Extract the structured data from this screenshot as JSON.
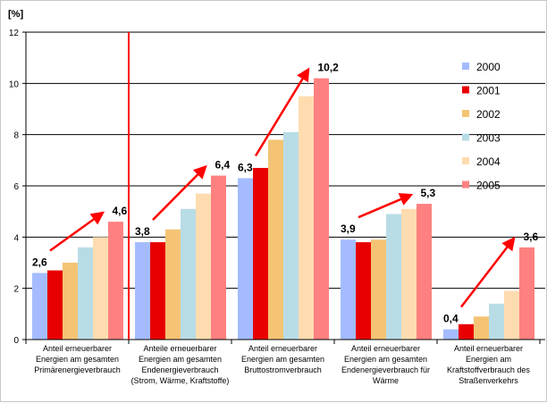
{
  "chart_data": {
    "type": "bar",
    "ylabel": "[%]",
    "ylim": [
      0,
      12
    ],
    "yticks": [
      "0",
      "2",
      "4",
      "6",
      "8",
      "10",
      "12"
    ],
    "grid": true,
    "legend_placement": "right",
    "categories": [
      "Anteil erneuerbarer Energien am gesamten Primärenergieverbrauch",
      "Anteile erneuerbarer Energien am gesamten Endenergieverbrauch (Strom, Wärme, Kraftstoffe)",
      "Anteil erneuerbarer Energien am gesamten Bruttostromverbrauch",
      "Anteil erneuerbarer Energien am gesamten Endenergieverbrauch für Wärme",
      "Anteil erneuerbarer Energien am Kraftstoffverbrauch des Straßenverkehrs"
    ],
    "series": [
      {
        "name": "2000",
        "color": "#a4bcff",
        "values": [
          2.6,
          3.8,
          6.3,
          3.9,
          0.4
        ]
      },
      {
        "name": "2001",
        "color": "#e80000",
        "values": [
          2.7,
          3.8,
          6.7,
          3.8,
          0.6
        ]
      },
      {
        "name": "2002",
        "color": "#f4c474",
        "values": [
          3.0,
          4.3,
          7.8,
          3.9,
          0.9
        ]
      },
      {
        "name": "2003",
        "color": "#b8dce6",
        "values": [
          3.6,
          5.1,
          8.1,
          4.9,
          1.4
        ]
      },
      {
        "name": "2004",
        "color": "#fedcb0",
        "values": [
          4.0,
          5.7,
          9.5,
          5.1,
          1.9
        ]
      },
      {
        "name": "2005",
        "color": "#ff8080",
        "values": [
          4.6,
          6.4,
          10.2,
          5.3,
          3.6
        ]
      }
    ],
    "annotations": [
      {
        "start": "2,6",
        "end": "4,6"
      },
      {
        "start": "3,8",
        "end": "6,4"
      },
      {
        "start": "6,3",
        "end": "10,2"
      },
      {
        "start": "3,9",
        "end": "5,3"
      },
      {
        "start": "0,4",
        "end": "3,6"
      }
    ],
    "arrow_color": "#ff0000",
    "divider_color": "#ff0000"
  }
}
